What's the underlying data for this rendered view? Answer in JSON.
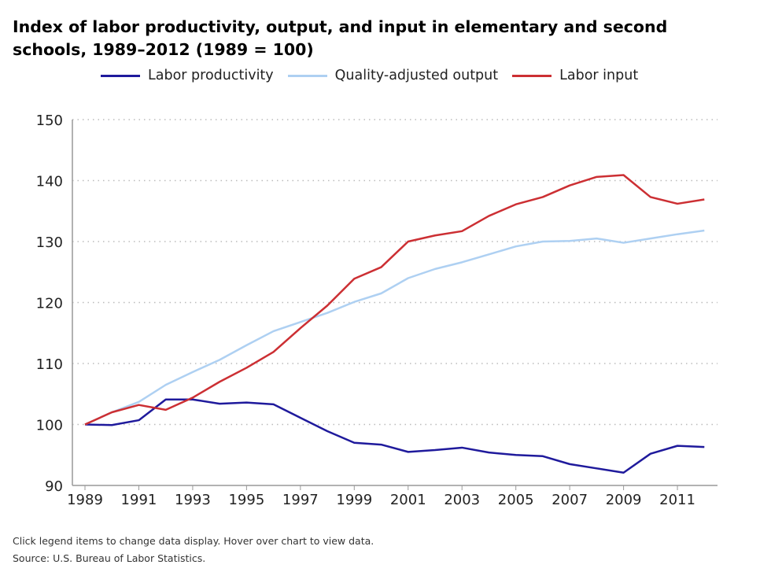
{
  "chart_data": {
    "type": "line",
    "title": "Index of labor productivity, output, and input in elementary and secondary schools, 1989–2012 (1989 = 100)",
    "title_visible": "Index of labor productivity, output, and input in elementary and second",
    "title_line2": "schools, 1989–2012 (1989 = 100)",
    "xlabel": "",
    "ylabel": "",
    "x": [
      1989,
      1990,
      1991,
      1992,
      1993,
      1994,
      1995,
      1996,
      1997,
      1998,
      1999,
      2000,
      2001,
      2002,
      2003,
      2004,
      2005,
      2006,
      2007,
      2008,
      2009,
      2010,
      2011,
      2012
    ],
    "xticks": [
      "1989",
      "1991",
      "1993",
      "1995",
      "1997",
      "1999",
      "2001",
      "2003",
      "2005",
      "2007",
      "2009",
      "2011"
    ],
    "ylim": [
      90,
      150
    ],
    "yticks": [
      "90",
      "100",
      "110",
      "120",
      "130",
      "140",
      "150"
    ],
    "grid": "horizontal dotted",
    "legend_position": "top",
    "series": [
      {
        "name": "Labor productivity",
        "color": "#1f1a9c",
        "values": [
          100,
          99.9,
          100.7,
          104.1,
          104.1,
          103.4,
          103.6,
          103.3,
          101.1,
          98.9,
          97.0,
          96.7,
          95.5,
          95.8,
          96.2,
          95.4,
          95.0,
          94.8,
          93.5,
          92.8,
          92.1,
          95.2,
          96.5,
          96.3
        ]
      },
      {
        "name": "Quality-adjusted output",
        "color": "#aed0f2",
        "values": [
          100,
          102.0,
          103.7,
          106.5,
          108.6,
          110.6,
          113.0,
          115.3,
          116.8,
          118.3,
          120.1,
          121.5,
          124.0,
          125.5,
          126.6,
          127.9,
          129.2,
          130.0,
          130.1,
          130.5,
          129.8,
          130.5,
          131.2,
          131.8
        ]
      },
      {
        "name": "Labor input",
        "color": "#cc2f33",
        "values": [
          100,
          102.0,
          103.2,
          102.4,
          104.4,
          107.0,
          109.3,
          111.9,
          115.8,
          119.5,
          123.9,
          125.8,
          130.0,
          131.0,
          131.7,
          134.2,
          136.1,
          137.3,
          139.2,
          140.6,
          140.9,
          137.3,
          136.2,
          136.9
        ]
      }
    ]
  },
  "footnote": {
    "instructions": "Click legend items to change data display. Hover over chart to view data.",
    "source": "Source: U.S. Bureau of Labor Statistics."
  }
}
